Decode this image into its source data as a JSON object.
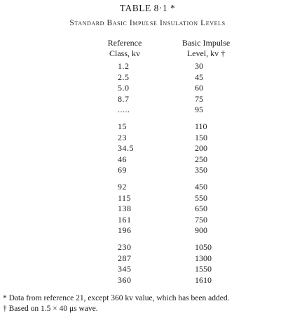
{
  "table_number": "TABLE 8·1 *",
  "table_title": "Standard Basic Impulse Insulation Levels",
  "headers": {
    "reference_class_line1": "Reference",
    "reference_class_line2": "Class, kv",
    "bil_line1": "Basic Impulse",
    "bil_line2": "Level, kv †"
  },
  "groups": [
    {
      "rows": [
        {
          "ref": "1.2",
          "bil": "30"
        },
        {
          "ref": "2.5",
          "bil": "45"
        },
        {
          "ref": "5.0",
          "bil": "60"
        },
        {
          "ref": "8.7",
          "bil": "75"
        },
        {
          "ref": ".....",
          "bil": "95"
        }
      ]
    },
    {
      "rows": [
        {
          "ref": "15",
          "bil": "110"
        },
        {
          "ref": "23",
          "bil": "150"
        },
        {
          "ref": "34.5",
          "bil": "200"
        },
        {
          "ref": "46",
          "bil": "250"
        },
        {
          "ref": "69",
          "bil": "350"
        }
      ]
    },
    {
      "rows": [
        {
          "ref": "92",
          "bil": "450"
        },
        {
          "ref": "115",
          "bil": "550"
        },
        {
          "ref": "138",
          "bil": "650"
        },
        {
          "ref": "161",
          "bil": "750"
        },
        {
          "ref": "196",
          "bil": "900"
        }
      ]
    },
    {
      "rows": [
        {
          "ref": "230",
          "bil": "1050"
        },
        {
          "ref": "287",
          "bil": "1300"
        },
        {
          "ref": "345",
          "bil": "1550"
        },
        {
          "ref": "360",
          "bil": "1610"
        }
      ]
    }
  ],
  "footnotes": [
    "* Data from reference 21, except 360 kv value, which has been added.",
    "† Based on 1.5 × 40 μs wave."
  ]
}
